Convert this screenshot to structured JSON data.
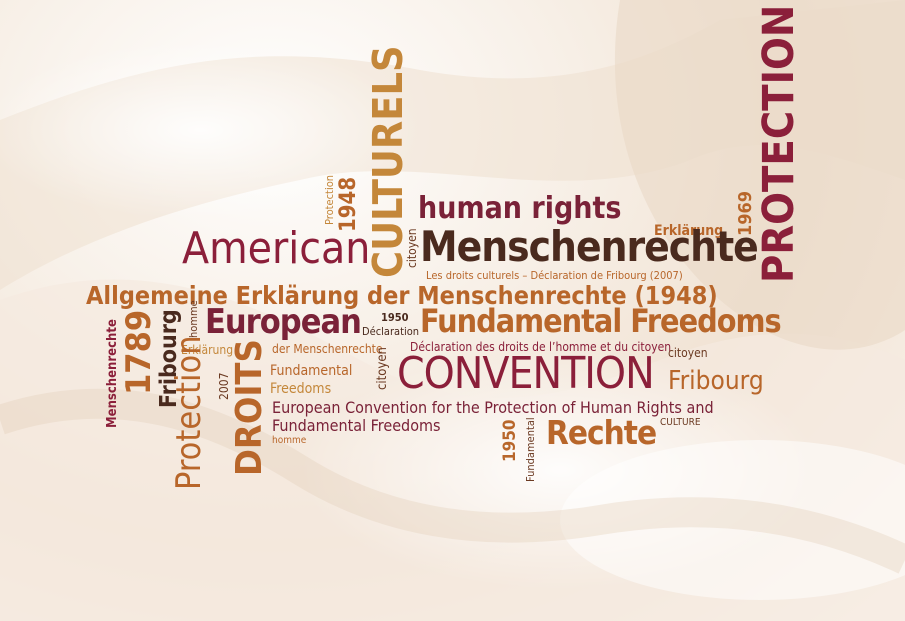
{
  "words": [
    {
      "id": "protection-large",
      "text": "PROTECTION"
    },
    {
      "id": "culturels",
      "text": "CULTURELS"
    },
    {
      "id": "protection-small-1",
      "text": "Protection"
    },
    {
      "id": "year-1948",
      "text": "1948"
    },
    {
      "id": "human-rights",
      "text": "human rights"
    },
    {
      "id": "erklarung-1",
      "text": "Erklärung"
    },
    {
      "id": "year-1969",
      "text": "1969"
    },
    {
      "id": "american",
      "text": "American"
    },
    {
      "id": "citoyen-1",
      "text": "citoyen"
    },
    {
      "id": "menschenrechte-large",
      "text": "Menschenrechte"
    },
    {
      "id": "droits-culturels-fribourg",
      "text": "Les droits culturels – Déclaration de Fribourg (2007)"
    },
    {
      "id": "allgemeine",
      "text": "Allgemeine Erklärung der Menschenrechte (1948)"
    },
    {
      "id": "european",
      "text": "European"
    },
    {
      "id": "homme-1",
      "text": "homme"
    },
    {
      "id": "year-1950-a",
      "text": "1950"
    },
    {
      "id": "declaration-1",
      "text": "Déclaration"
    },
    {
      "id": "fundamental-freedoms-large",
      "text": "Fundamental Freedoms"
    },
    {
      "id": "menschenrechte-small",
      "text": "Menschenrechte"
    },
    {
      "id": "year-1789",
      "text": "1789"
    },
    {
      "id": "fribourg-1",
      "text": "Fribourg"
    },
    {
      "id": "erklarung-2",
      "text": "Erklärung"
    },
    {
      "id": "protection-2",
      "text": "Protection"
    },
    {
      "id": "droits",
      "text": "DROITS"
    },
    {
      "id": "year-2007",
      "text": "2007"
    },
    {
      "id": "der-menschenrechte",
      "text": "der Menschenrechte"
    },
    {
      "id": "declaration-droits-homme",
      "text": "Déclaration des droits de l’homme et du citoyen"
    },
    {
      "id": "citoyen-2",
      "text": "citoyen"
    },
    {
      "id": "convention",
      "text": "CONVENTION"
    },
    {
      "id": "fundamental-1",
      "text": "Fundamental"
    },
    {
      "id": "freedoms-1",
      "text": "Freedoms"
    },
    {
      "id": "citoyen-3",
      "text": "citoyen"
    },
    {
      "id": "fribourg-2",
      "text": "Fribourg"
    },
    {
      "id": "european-convention-1",
      "text": "European Convention for the Protection of Human Rights and"
    },
    {
      "id": "european-convention-2",
      "text": "Fundamental Freedoms"
    },
    {
      "id": "homme-2",
      "text": "homme"
    },
    {
      "id": "year-1950-b",
      "text": "1950"
    },
    {
      "id": "fundamental-2",
      "text": "Fundamental"
    },
    {
      "id": "rechte",
      "text": "Rechte"
    },
    {
      "id": "culture",
      "text": "CULTURE"
    }
  ]
}
